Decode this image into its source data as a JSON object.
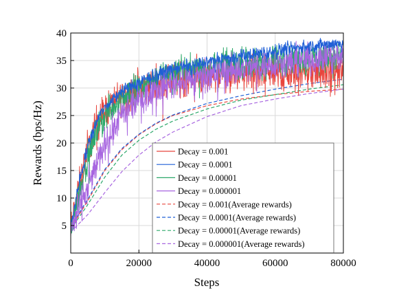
{
  "chart_data": {
    "type": "line",
    "title": "",
    "xlabel": "Steps",
    "ylabel": "Rewards (bps/Hz)",
    "xlim": [
      0,
      80000
    ],
    "ylim": [
      0,
      40
    ],
    "x_ticks": [
      0,
      20000,
      40000,
      60000,
      80000
    ],
    "x_tick_labels": [
      "0",
      "20000",
      "40000",
      "60000",
      "80000"
    ],
    "y_ticks": [
      0,
      5,
      10,
      15,
      20,
      25,
      30,
      35,
      40
    ],
    "y_tick_labels": [
      "",
      "5",
      "10",
      "15",
      "20",
      "25",
      "30",
      "35",
      "40"
    ],
    "grid": true,
    "legend_position": "lower-right",
    "series": [
      {
        "name": "Decay = 0.001",
        "color": "#e8453c",
        "style": "solid",
        "noise": 1.6,
        "x": [
          0,
          2500,
          5000,
          7500,
          10000,
          15000,
          20000,
          25000,
          30000,
          40000,
          50000,
          60000,
          70000,
          80000
        ],
        "y": [
          4.5,
          12,
          19,
          23.5,
          26,
          28.5,
          30,
          30.8,
          31.5,
          32.5,
          32.5,
          32.8,
          33,
          33
        ]
      },
      {
        "name": "Decay = 0.0001",
        "color": "#1f5fd6",
        "style": "solid",
        "noise": 0.6,
        "x": [
          0,
          2500,
          5000,
          7500,
          10000,
          15000,
          20000,
          25000,
          30000,
          40000,
          50000,
          60000,
          70000,
          80000
        ],
        "y": [
          5,
          13,
          19.5,
          24,
          26.5,
          29.5,
          31,
          32.5,
          33.5,
          34.8,
          35.8,
          36.8,
          37.6,
          38.2
        ]
      },
      {
        "name": "Decay = 0.00001",
        "color": "#2ca86a",
        "style": "solid",
        "noise": 1.3,
        "x": [
          0,
          2500,
          5000,
          7500,
          10000,
          15000,
          20000,
          25000,
          30000,
          40000,
          50000,
          60000,
          70000,
          80000
        ],
        "y": [
          4.5,
          11,
          17.5,
          22,
          25,
          28.5,
          30.5,
          31.8,
          32.8,
          34,
          34.5,
          35,
          35.5,
          36
        ]
      },
      {
        "name": "Decay = 0.000001",
        "color": "#a866e0",
        "style": "solid",
        "noise": 1.4,
        "x": [
          0,
          2500,
          5000,
          7500,
          10000,
          15000,
          20000,
          25000,
          30000,
          40000,
          50000,
          60000,
          70000,
          80000
        ],
        "y": [
          4,
          8.5,
          12,
          16,
          20,
          25,
          28,
          30,
          31,
          32.5,
          33.5,
          34.5,
          35.3,
          36
        ]
      },
      {
        "name": "Decay = 0.001(Average rewards)",
        "color": "#e8453c",
        "style": "dashed",
        "noise": 0,
        "x": [
          0,
          5000,
          10000,
          15000,
          20000,
          25000,
          30000,
          40000,
          50000,
          60000,
          70000,
          80000
        ],
        "y": [
          4.5,
          9.5,
          15,
          18.8,
          21.5,
          23.5,
          25,
          26.8,
          28,
          28.8,
          29.4,
          29.8
        ]
      },
      {
        "name": "Decay = 0.0001(Average rewards)",
        "color": "#1f5fd6",
        "style": "dashed",
        "noise": 0,
        "x": [
          0,
          5000,
          10000,
          15000,
          20000,
          25000,
          30000,
          40000,
          50000,
          60000,
          70000,
          80000
        ],
        "y": [
          4.8,
          9.8,
          15.2,
          19,
          21.6,
          23.6,
          25.1,
          27.2,
          28.6,
          29.8,
          30.8,
          31.6
        ]
      },
      {
        "name": "Decay = 0.00001(Average rewards)",
        "color": "#2ca86a",
        "style": "dashed",
        "noise": 0,
        "x": [
          0,
          5000,
          10000,
          15000,
          20000,
          25000,
          30000,
          40000,
          50000,
          60000,
          70000,
          80000
        ],
        "y": [
          4.3,
          8.8,
          13.8,
          17.8,
          20.5,
          22.5,
          24,
          26.2,
          27.8,
          28.8,
          29.8,
          30.6
        ]
      },
      {
        "name": "Decay = 0.000001(Average rewards)",
        "color": "#a866e0",
        "style": "dashed",
        "noise": 0,
        "x": [
          0,
          5000,
          10000,
          15000,
          20000,
          25000,
          30000,
          40000,
          50000,
          60000,
          70000,
          80000
        ],
        "y": [
          3.8,
          7,
          11,
          14.8,
          17.8,
          20.2,
          22,
          24.8,
          26.8,
          28,
          29,
          29.8
        ]
      }
    ]
  }
}
